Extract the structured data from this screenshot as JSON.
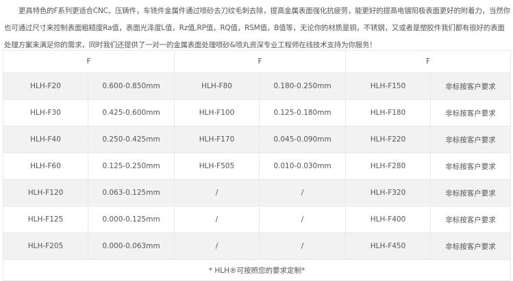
{
  "intro": "更具特色的F系列更适合CNC，压铸件，车铣件金属件通过喷砂去刀纹毛刺去除，提高金属表面强化抗疲劳，能更好的提高电镀阳极表面更好的附着力，当然你也可通过尺寸来控制表面粗糙度Ra值，表面光泽度L值，Rz值,RP值，RQ值，RSM值，B值等，无论你的材质是铜，不锈钢，又或者是塑胶件我们都有很好的表面处理方案来满足你的需求，同时我们还提供了一对一的金属表面处理喷砂&喷丸资深专业工程师在线技术支持为你服务！",
  "table": {
    "headers": [
      "F",
      "F",
      "F"
    ],
    "rows": [
      [
        "HLH-F20",
        "0.600-0.850mm",
        "HLH-F80",
        "0.180-0.250mm",
        "HLH-F150",
        "非标按客户要求"
      ],
      [
        "HLH-F30",
        "0.425-0.600mm",
        "HLH-F100",
        "0.125-0.180mm",
        "HLH-F180",
        "非标按客户要求"
      ],
      [
        "HLH-F40",
        "0.250-0.425mm",
        "HLH-F170",
        "0.045-0.090mm",
        "HLH-F220",
        "非标按客户要求"
      ],
      [
        "HLH-F60",
        "0.125-0.250mm",
        "HLH-F505",
        "0.010-0.030mm",
        "HLH-F280",
        "非标按客户要求"
      ],
      [
        "HLH-F120",
        "0.063-0.125mm",
        "/",
        "/",
        "HLH-F320",
        "非标按客户要求"
      ],
      [
        "HLH-F125",
        "0.000-0.125mm",
        "/",
        "/",
        "HLH-F400",
        "非标按客户要求"
      ],
      [
        "HLH-F205",
        "0.000-0.063mm",
        "/",
        "/",
        "HLH-F450",
        "非标按客户要求"
      ]
    ],
    "footer": "* HLH®可按照您的要求定制*"
  }
}
